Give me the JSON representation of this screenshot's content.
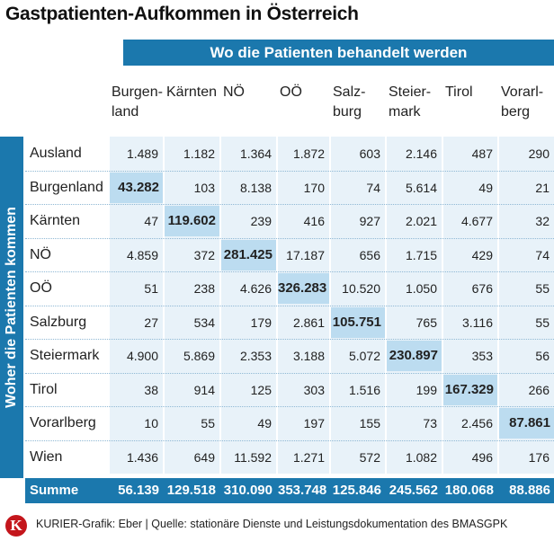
{
  "chart_data": {
    "type": "table",
    "title": "Gastpatienten-Aufkommen in Österreich",
    "column_header": "Wo die Patienten behandelt werden",
    "row_header": "Woher die Patienten kommen",
    "columns": [
      [
        "Burgen-",
        "land"
      ],
      [
        "Kärnten"
      ],
      [
        "NÖ"
      ],
      [
        "OÖ"
      ],
      [
        "Salz-",
        "burg"
      ],
      [
        "Steier-",
        "mark"
      ],
      [
        "Tirol"
      ],
      [
        "Vorarl-",
        "berg"
      ]
    ],
    "rows": [
      {
        "label": "Ausland",
        "values": [
          "1.489",
          "1.182",
          "1.364",
          "1.872",
          "603",
          "2.146",
          "487",
          "290"
        ]
      },
      {
        "label": "Burgenland",
        "values": [
          "43.282",
          "103",
          "8.138",
          "170",
          "74",
          "5.614",
          "49",
          "21"
        ]
      },
      {
        "label": "Kärnten",
        "values": [
          "47",
          "119.602",
          "239",
          "416",
          "927",
          "2.021",
          "4.677",
          "32"
        ]
      },
      {
        "label": "NÖ",
        "values": [
          "4.859",
          "372",
          "281.425",
          "17.187",
          "656",
          "1.715",
          "429",
          "74"
        ]
      },
      {
        "label": "OÖ",
        "values": [
          "51",
          "238",
          "4.626",
          "326.283",
          "10.520",
          "1.050",
          "676",
          "55"
        ]
      },
      {
        "label": "Salzburg",
        "values": [
          "27",
          "534",
          "179",
          "2.861",
          "105.751",
          "765",
          "3.116",
          "55"
        ]
      },
      {
        "label": "Steiermark",
        "values": [
          "4.900",
          "5.869",
          "2.353",
          "3.188",
          "5.072",
          "230.897",
          "353",
          "56"
        ]
      },
      {
        "label": "Tirol",
        "values": [
          "38",
          "914",
          "125",
          "303",
          "1.516",
          "199",
          "167.329",
          "266"
        ]
      },
      {
        "label": "Vorarlberg",
        "values": [
          "10",
          "55",
          "49",
          "197",
          "155",
          "73",
          "2.456",
          "87.861"
        ]
      },
      {
        "label": "Wien",
        "values": [
          "1.436",
          "649",
          "11.592",
          "1.271",
          "572",
          "1.082",
          "496",
          "176"
        ]
      }
    ],
    "highlight_rows": [
      1,
      2,
      3,
      4,
      5,
      6,
      7,
      8
    ],
    "sum_label": "Summe",
    "sums": [
      "56.139",
      "129.518",
      "310.090",
      "353.748",
      "125.846",
      "245.562",
      "180.068",
      "88.886"
    ]
  },
  "footer": {
    "logo_letter": "K",
    "source": "KURIER-Grafik: Eber | Quelle: stationäre Dienste und Leistungsdokumentation des BMASGPK"
  },
  "colors": {
    "banner": "#1b78ad",
    "column_tint": "#e8f2f9",
    "diagonal": "#bcdcf0",
    "logo": "#c4161c"
  }
}
